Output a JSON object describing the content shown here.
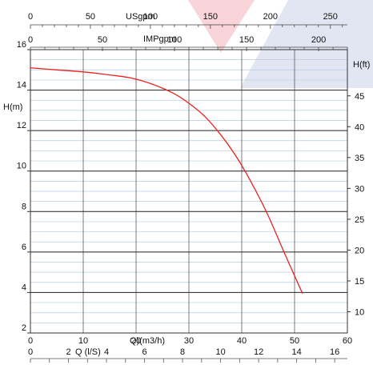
{
  "chart_data": {
    "type": "line",
    "title": "",
    "xlabel": "Q)(m3/h)",
    "ylabel": "H(m)",
    "y2label": "H(ft)",
    "xlim": [
      0,
      60
    ],
    "ylim": [
      2,
      16
    ],
    "y2lim": [
      6.56,
      52.49
    ],
    "grid": true,
    "x_ticks": [
      "0",
      "10",
      "20",
      "30",
      "40",
      "50",
      "60"
    ],
    "y_ticks": [
      "2",
      "4",
      "6",
      "8",
      "10",
      "12",
      "14",
      "16"
    ],
    "y2_ticks": [
      "10",
      "15",
      "20",
      "25",
      "30",
      "35",
      "40",
      "45"
    ],
    "top_axes": [
      {
        "label": "USgpm",
        "ticks": [
          "0",
          "50",
          "100",
          "150",
          "200",
          "250"
        ],
        "per_m3h": 4.403
      },
      {
        "label": "IMPgpm",
        "ticks": [
          "0",
          "50",
          "100",
          "150",
          "200"
        ],
        "per_m3h": 3.666
      }
    ],
    "bottom_axis2": {
      "label": "Q (l/S)",
      "ticks": [
        "0",
        "2",
        "4",
        "6",
        "8",
        "10",
        "12",
        "14",
        "16"
      ],
      "per_m3h": 0.2778
    },
    "series": [
      {
        "color": "#e8231f",
        "x": [
          0,
          5,
          10,
          15,
          19,
          23,
          27,
          30,
          33,
          36,
          39,
          42,
          45,
          48,
          51.5
        ],
        "y": [
          15.1,
          15.0,
          14.9,
          14.75,
          14.6,
          14.3,
          13.85,
          13.35,
          12.7,
          11.8,
          10.7,
          9.35,
          7.8,
          6.0,
          3.95
        ]
      }
    ]
  }
}
